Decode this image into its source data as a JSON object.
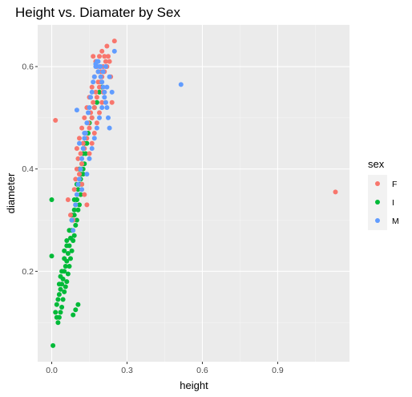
{
  "chart_data": {
    "type": "scatter",
    "title": "Height vs. Diamater by Sex",
    "xlabel": "height",
    "ylabel": "diameter",
    "xlim": [
      -0.056,
      1.186
    ],
    "ylim": [
      0.0235,
      0.6815
    ],
    "x_ticks": [
      0.0,
      0.3,
      0.6,
      0.9
    ],
    "x_tick_labels": [
      "0.0",
      "0.3",
      "0.6",
      "0.9"
    ],
    "y_ticks": [
      0.2,
      0.4,
      0.6
    ],
    "y_tick_labels": [
      "0.2",
      "0.4",
      "0.6"
    ],
    "grid": true,
    "legend": {
      "title": "sex",
      "position": "right",
      "entries": [
        {
          "label": "F",
          "color": "#F8766D"
        },
        {
          "label": "I",
          "color": "#00BA38"
        },
        {
          "label": "M",
          "color": "#619CFF"
        }
      ]
    },
    "series": [
      {
        "name": "I",
        "color": "#00BA38",
        "x": [
          0.0,
          0.0,
          0.005,
          0.015,
          0.02,
          0.025,
          0.02,
          0.025,
          0.03,
          0.03,
          0.03,
          0.035,
          0.035,
          0.035,
          0.04,
          0.04,
          0.04,
          0.045,
          0.045,
          0.05,
          0.05,
          0.05,
          0.055,
          0.055,
          0.06,
          0.06,
          0.06,
          0.065,
          0.065,
          0.07,
          0.07,
          0.07,
          0.075,
          0.075,
          0.08,
          0.08,
          0.08,
          0.085,
          0.085,
          0.09,
          0.09,
          0.09,
          0.095,
          0.095,
          0.1,
          0.1,
          0.1,
          0.105,
          0.105,
          0.11,
          0.11,
          0.11,
          0.115,
          0.115,
          0.12,
          0.12,
          0.125,
          0.125,
          0.13,
          0.13,
          0.135,
          0.14,
          0.145,
          0.15,
          0.16,
          0.17,
          0.18,
          0.19,
          0.2,
          0.05,
          0.06,
          0.07,
          0.08,
          0.09,
          0.1,
          0.085,
          0.095,
          0.105,
          0.115,
          0.125
        ],
        "y": [
          0.34,
          0.23,
          0.055,
          0.12,
          0.11,
          0.1,
          0.135,
          0.145,
          0.11,
          0.155,
          0.175,
          0.12,
          0.165,
          0.19,
          0.13,
          0.175,
          0.2,
          0.145,
          0.185,
          0.16,
          0.2,
          0.225,
          0.17,
          0.21,
          0.18,
          0.22,
          0.25,
          0.195,
          0.235,
          0.21,
          0.25,
          0.28,
          0.225,
          0.265,
          0.24,
          0.28,
          0.31,
          0.26,
          0.3,
          0.27,
          0.31,
          0.34,
          0.29,
          0.33,
          0.3,
          0.34,
          0.37,
          0.32,
          0.36,
          0.33,
          0.37,
          0.4,
          0.35,
          0.39,
          0.37,
          0.41,
          0.39,
          0.43,
          0.41,
          0.45,
          0.43,
          0.45,
          0.47,
          0.49,
          0.5,
          0.52,
          0.53,
          0.55,
          0.56,
          0.24,
          0.26,
          0.28,
          0.3,
          0.32,
          0.34,
          0.115,
          0.125,
          0.135,
          0.38,
          0.4
        ]
      },
      {
        "name": "F",
        "color": "#F8766D",
        "x": [
          0.015,
          1.13,
          0.065,
          0.075,
          0.085,
          0.09,
          0.095,
          0.1,
          0.1,
          0.105,
          0.11,
          0.11,
          0.115,
          0.12,
          0.12,
          0.125,
          0.13,
          0.13,
          0.135,
          0.14,
          0.14,
          0.145,
          0.15,
          0.15,
          0.155,
          0.16,
          0.16,
          0.165,
          0.17,
          0.17,
          0.175,
          0.18,
          0.18,
          0.185,
          0.19,
          0.19,
          0.195,
          0.2,
          0.2,
          0.205,
          0.21,
          0.21,
          0.215,
          0.22,
          0.22,
          0.225,
          0.23,
          0.235,
          0.24,
          0.25,
          0.12,
          0.13,
          0.14,
          0.15,
          0.16,
          0.17,
          0.18,
          0.19,
          0.2,
          0.21,
          0.165,
          0.175,
          0.185,
          0.195,
          0.205,
          0.215
        ],
        "y": [
          0.495,
          0.355,
          0.34,
          0.31,
          0.3,
          0.36,
          0.38,
          0.4,
          0.44,
          0.42,
          0.39,
          0.46,
          0.43,
          0.41,
          0.48,
          0.45,
          0.44,
          0.5,
          0.47,
          0.46,
          0.52,
          0.49,
          0.48,
          0.54,
          0.51,
          0.5,
          0.56,
          0.53,
          0.52,
          0.58,
          0.55,
          0.54,
          0.6,
          0.57,
          0.56,
          0.62,
          0.59,
          0.58,
          0.63,
          0.6,
          0.59,
          0.62,
          0.61,
          0.6,
          0.64,
          0.62,
          0.61,
          0.58,
          0.53,
          0.65,
          0.37,
          0.35,
          0.33,
          0.43,
          0.45,
          0.47,
          0.49,
          0.51,
          0.53,
          0.55,
          0.62,
          0.61,
          0.59,
          0.57,
          0.55,
          0.53
        ]
      },
      {
        "name": "M",
        "color": "#619CFF",
        "x": [
          0.515,
          0.08,
          0.085,
          0.095,
          0.1,
          0.105,
          0.11,
          0.115,
          0.12,
          0.125,
          0.13,
          0.135,
          0.14,
          0.145,
          0.15,
          0.155,
          0.16,
          0.165,
          0.17,
          0.175,
          0.18,
          0.185,
          0.19,
          0.195,
          0.2,
          0.205,
          0.21,
          0.215,
          0.22,
          0.225,
          0.23,
          0.24,
          0.25,
          0.1,
          0.11,
          0.12,
          0.13,
          0.14,
          0.15,
          0.16,
          0.17,
          0.18,
          0.19,
          0.2,
          0.21,
          0.22,
          0.23,
          0.175,
          0.185,
          0.195,
          0.205,
          0.215
        ],
        "y": [
          0.565,
          0.3,
          0.28,
          0.33,
          0.35,
          0.37,
          0.38,
          0.4,
          0.42,
          0.44,
          0.46,
          0.47,
          0.49,
          0.51,
          0.52,
          0.54,
          0.55,
          0.57,
          0.58,
          0.6,
          0.61,
          0.59,
          0.6,
          0.58,
          0.57,
          0.56,
          0.55,
          0.53,
          0.52,
          0.5,
          0.48,
          0.55,
          0.63,
          0.515,
          0.45,
          0.36,
          0.47,
          0.39,
          0.42,
          0.44,
          0.46,
          0.48,
          0.5,
          0.52,
          0.54,
          0.56,
          0.58,
          0.605,
          0.61,
          0.6,
          0.59,
          0.6
        ]
      }
    ]
  }
}
